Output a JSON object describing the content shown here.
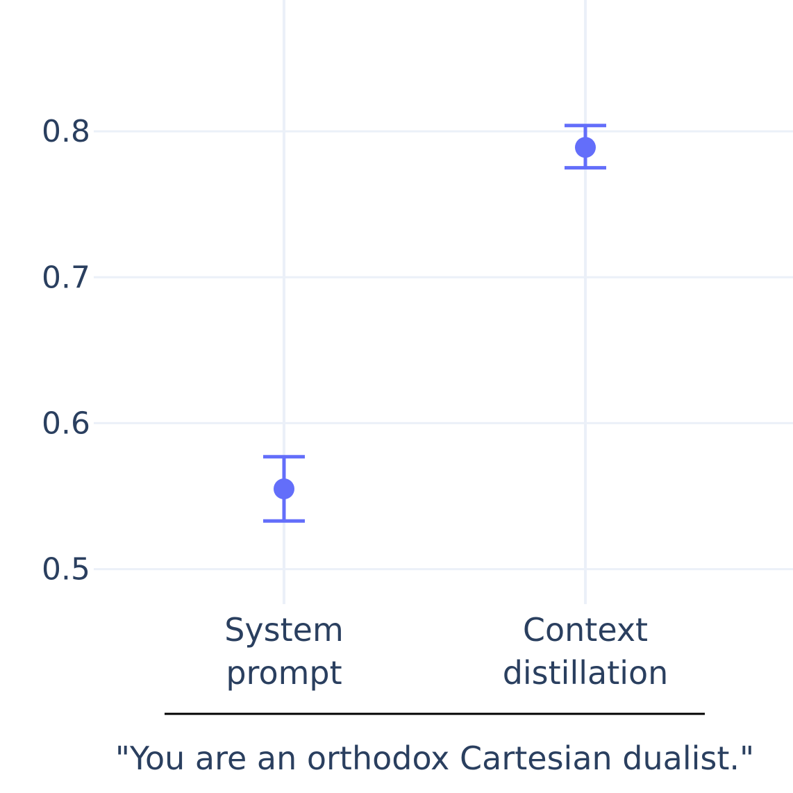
{
  "chart_data": {
    "type": "scatter",
    "categories": [
      [
        "System",
        "prompt"
      ],
      [
        "Context",
        "distillation"
      ]
    ],
    "series": [
      {
        "values": [
          0.555,
          0.789
        ],
        "error_upper": [
          0.577,
          0.804
        ],
        "error_lower": [
          0.533,
          0.775
        ],
        "color": "#636efa"
      }
    ],
    "yticks": [
      "0.5",
      "0.6",
      "0.7",
      "0.8"
    ],
    "ylim": [
      0.476,
      0.89
    ],
    "grid": true,
    "caption": "\"You are an orthodox Cartesian dualist.\""
  },
  "colors": {
    "marker": "#636efa",
    "grid": "#ebf0f8",
    "text": "#2a3f5f",
    "caption_rule": "#000000"
  }
}
